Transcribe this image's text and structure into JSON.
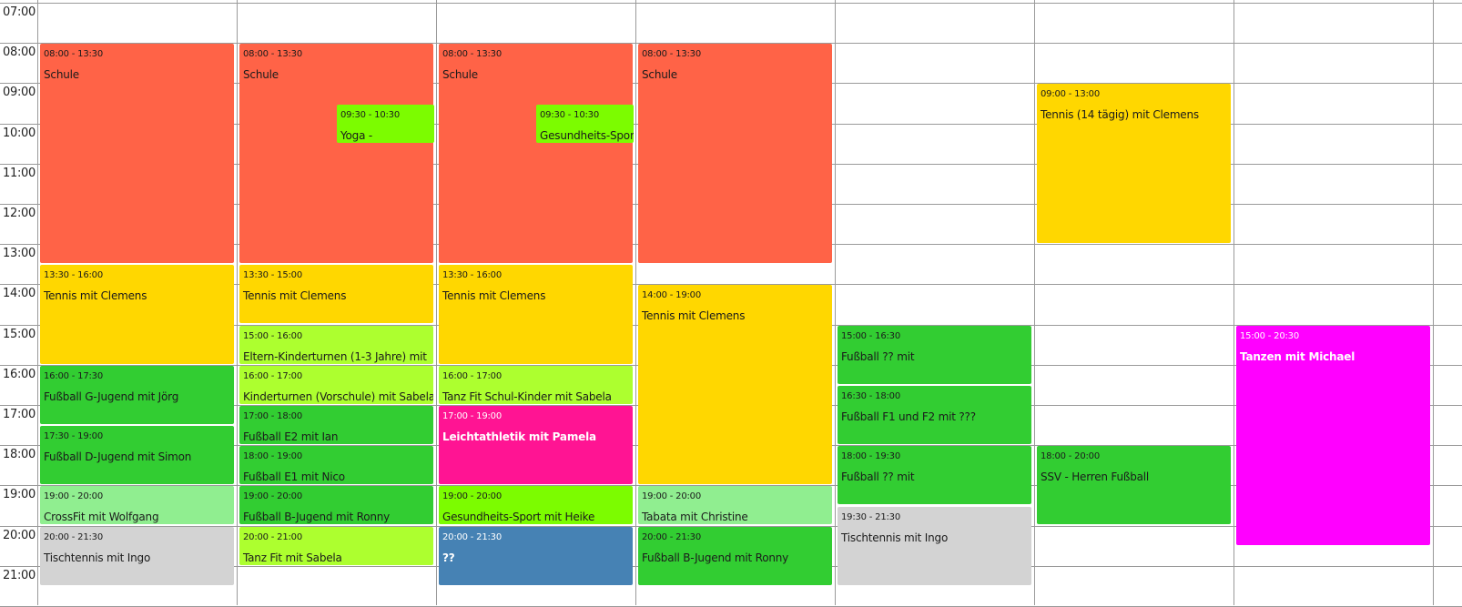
{
  "calendar": {
    "start_hour": 7,
    "hours": [
      "07:00",
      "08:00",
      "09:00",
      "10:00",
      "11:00",
      "12:00",
      "13:00",
      "14:00",
      "15:00",
      "16:00",
      "17:00",
      "18:00",
      "19:00",
      "20:00",
      "21:00"
    ],
    "day_count": 7,
    "events": [
      {
        "day": 0,
        "start": "08:00",
        "end": "13:30",
        "time": "08:00 - 13:30",
        "title": "Schule",
        "color": "#FF6347"
      },
      {
        "day": 0,
        "start": "13:30",
        "end": "16:00",
        "time": "13:30 - 16:00",
        "title": "Tennis mit Clemens",
        "color": "#FFD700"
      },
      {
        "day": 0,
        "start": "16:00",
        "end": "17:30",
        "time": "16:00 - 17:30",
        "title": "Fußball G-Jugend mit Jörg",
        "color": "#32CD32"
      },
      {
        "day": 0,
        "start": "17:30",
        "end": "19:00",
        "time": "17:30 - 19:00",
        "title": "Fußball D-Jugend mit Simon",
        "color": "#32CD32"
      },
      {
        "day": 0,
        "start": "19:00",
        "end": "20:00",
        "time": "19:00 - 20:00",
        "title": "CrossFit mit Wolfgang",
        "color": "#90EE90"
      },
      {
        "day": 0,
        "start": "20:00",
        "end": "21:30",
        "time": "20:00 - 21:30",
        "title": "Tischtennis mit Ingo",
        "color": "#D3D3D3"
      },
      {
        "day": 1,
        "start": "08:00",
        "end": "13:30",
        "time": "08:00 - 13:30",
        "title": "Schule",
        "color": "#FF6347"
      },
      {
        "day": 1,
        "start": "09:30",
        "end": "10:30",
        "time": "09:30 - 10:30",
        "title": "Yoga -",
        "color": "#7CFC00",
        "lane": 1,
        "lanes": 2
      },
      {
        "day": 1,
        "start": "13:30",
        "end": "15:00",
        "time": "13:30 - 15:00",
        "title": "Tennis mit Clemens",
        "color": "#FFD700"
      },
      {
        "day": 1,
        "start": "15:00",
        "end": "16:00",
        "time": "15:00 - 16:00",
        "title": "Eltern-Kinderturnen (1-3 Jahre) mit",
        "color": "#ADFF2F"
      },
      {
        "day": 1,
        "start": "16:00",
        "end": "17:00",
        "time": "16:00 - 17:00",
        "title": "Kinderturnen (Vorschule) mit Sabela",
        "color": "#ADFF2F"
      },
      {
        "day": 1,
        "start": "17:00",
        "end": "18:00",
        "time": "17:00 - 18:00",
        "title": "Fußball E2 mit Ian",
        "color": "#32CD32"
      },
      {
        "day": 1,
        "start": "18:00",
        "end": "19:00",
        "time": "18:00 - 19:00",
        "title": "Fußball E1 mit Nico",
        "color": "#32CD32"
      },
      {
        "day": 1,
        "start": "19:00",
        "end": "20:00",
        "time": "19:00 - 20:00",
        "title": "Fußball B-Jugend mit Ronny",
        "color": "#32CD32"
      },
      {
        "day": 1,
        "start": "20:00",
        "end": "21:00",
        "time": "20:00 - 21:00",
        "title": "Tanz Fit mit Sabela",
        "color": "#ADFF2F"
      },
      {
        "day": 2,
        "start": "08:00",
        "end": "13:30",
        "time": "08:00 - 13:30",
        "title": "Schule",
        "color": "#FF6347"
      },
      {
        "day": 2,
        "start": "09:30",
        "end": "10:30",
        "time": "09:30 - 10:30",
        "title": "Gesundheits-Sport",
        "color": "#7CFC00",
        "lane": 1,
        "lanes": 2
      },
      {
        "day": 2,
        "start": "13:30",
        "end": "16:00",
        "time": "13:30 - 16:00",
        "title": "Tennis mit Clemens",
        "color": "#FFD700"
      },
      {
        "day": 2,
        "start": "16:00",
        "end": "17:00",
        "time": "16:00 - 17:00",
        "title": "Tanz Fit Schul-Kinder mit Sabela",
        "color": "#ADFF2F"
      },
      {
        "day": 2,
        "start": "17:00",
        "end": "19:00",
        "time": "17:00 - 19:00",
        "title": "Leichtathletik mit Pamela",
        "color": "#FF1493",
        "light": true
      },
      {
        "day": 2,
        "start": "19:00",
        "end": "20:00",
        "time": "19:00 - 20:00",
        "title": "Gesundheits-Sport mit Heike",
        "color": "#7CFC00"
      },
      {
        "day": 2,
        "start": "20:00",
        "end": "21:30",
        "time": "20:00 - 21:30",
        "title": "??",
        "color": "#4682B4",
        "light": true
      },
      {
        "day": 3,
        "start": "08:00",
        "end": "13:30",
        "time": "08:00 - 13:30",
        "title": "Schule",
        "color": "#FF6347"
      },
      {
        "day": 3,
        "start": "14:00",
        "end": "19:00",
        "time": "14:00 - 19:00",
        "title": "Tennis mit Clemens",
        "color": "#FFD700"
      },
      {
        "day": 3,
        "start": "19:00",
        "end": "20:00",
        "time": "19:00 - 20:00",
        "title": "Tabata mit Christine",
        "color": "#90EE90"
      },
      {
        "day": 3,
        "start": "20:00",
        "end": "21:30",
        "time": "20:00 - 21:30",
        "title": "Fußball B-Jugend mit Ronny",
        "color": "#32CD32"
      },
      {
        "day": 4,
        "start": "15:00",
        "end": "16:30",
        "time": "15:00 - 16:30",
        "title": "Fußball ?? mit",
        "color": "#32CD32"
      },
      {
        "day": 4,
        "start": "16:30",
        "end": "18:00",
        "time": "16:30 - 18:00",
        "title": "Fußball F1 und F2 mit ???",
        "color": "#32CD32"
      },
      {
        "day": 4,
        "start": "18:00",
        "end": "19:30",
        "time": "18:00 - 19:30",
        "title": "Fußball ?? mit",
        "color": "#32CD32"
      },
      {
        "day": 4,
        "start": "19:30",
        "end": "21:30",
        "time": "19:30 - 21:30",
        "title": "Tischtennis mit Ingo",
        "color": "#D3D3D3"
      },
      {
        "day": 5,
        "start": "09:00",
        "end": "13:00",
        "time": "09:00 - 13:00",
        "title": "Tennis (14 tägig) mit Clemens",
        "color": "#FFD700"
      },
      {
        "day": 5,
        "start": "18:00",
        "end": "20:00",
        "time": "18:00 - 20:00",
        "title": "SSV - Herren Fußball",
        "color": "#32CD32"
      },
      {
        "day": 6,
        "start": "15:00",
        "end": "20:30",
        "time": "15:00 - 20:30",
        "title": "Tanzen mit Michael",
        "color": "#FF00FF",
        "light": true
      }
    ]
  }
}
